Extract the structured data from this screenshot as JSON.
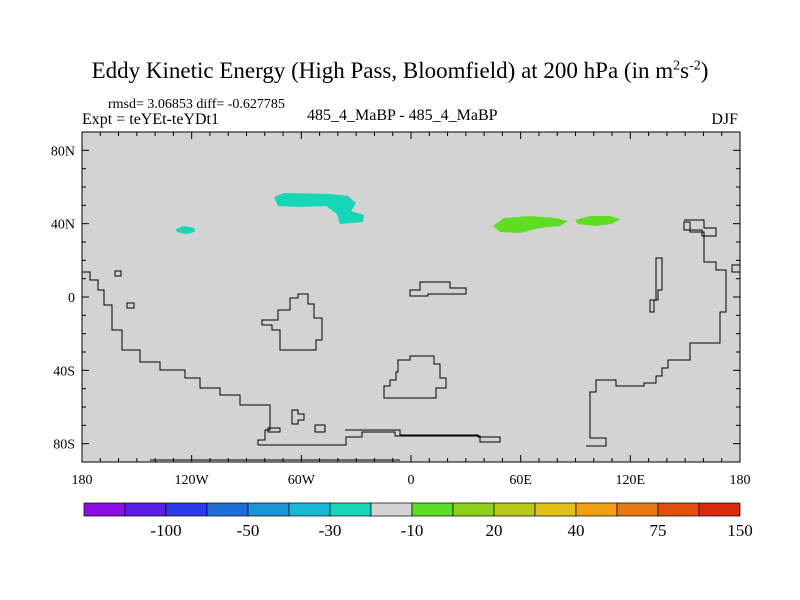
{
  "title": {
    "main": "Eddy Kinetic Energy (High Pass, Bloomfield) at 200 hPa (in m",
    "sup1": "2",
    "mid": "s",
    "sup2": "-2",
    "end": ")"
  },
  "stats": "rmsd= 3.06853 diff= -0.627785",
  "expt": "Expt = teYEt-teYDt1",
  "case": "485_4_MaBP - 485_4_MaBP",
  "season": "DJF",
  "colors": {
    "background": "#d3d3d3",
    "coast": "#000000",
    "palette": [
      "#8b10e6",
      "#5a1ee8",
      "#2d3ce8",
      "#1c6ed8",
      "#1a96d8",
      "#17b8d6",
      "#16d6b8",
      "#d3d3d3",
      "#5fdd22",
      "#8fd01a",
      "#b8c818",
      "#dfc015",
      "#f0a012",
      "#e8780f",
      "#e0500c",
      "#d82c0a"
    ]
  },
  "chart_data": {
    "type": "heatmap",
    "title": "Eddy Kinetic Energy (High Pass, Bloomfield) at 200 hPa (in m2s-2)",
    "xlim": [
      -180,
      180
    ],
    "ylim": [
      -90,
      90
    ],
    "x_ticks": [
      {
        "value": -180,
        "label": "180"
      },
      {
        "value": -120,
        "label": "120W"
      },
      {
        "value": -60,
        "label": "60W"
      },
      {
        "value": 0,
        "label": "0"
      },
      {
        "value": 60,
        "label": "60E"
      },
      {
        "value": 120,
        "label": "120E"
      },
      {
        "value": 180,
        "label": "180"
      }
    ],
    "y_ticks": [
      {
        "value": 80,
        "label": "80N"
      },
      {
        "value": 40,
        "label": "40N"
      },
      {
        "value": 0,
        "label": "0"
      },
      {
        "value": -40,
        "label": "40S"
      },
      {
        "value": -80,
        "label": "80S"
      }
    ],
    "colorbar_labels": [
      "-100",
      "-50",
      "-30",
      "-10",
      "20",
      "40",
      "75",
      "150"
    ],
    "anomaly_regions": [
      {
        "name": "Pacific teal patch",
        "color_bin": -10,
        "lon": [
          -125,
          -118
        ],
        "lat": [
          35,
          38
        ]
      },
      {
        "name": "Atlantic teal band",
        "color_bin": -10,
        "lon": [
          -75,
          -25
        ],
        "lat": [
          40,
          55
        ]
      },
      {
        "name": "Asia green patch west",
        "color_bin": 20,
        "lon": [
          45,
          85
        ],
        "lat": [
          36,
          45
        ]
      },
      {
        "name": "Asia green patch east",
        "color_bin": 20,
        "lon": [
          90,
          115
        ],
        "lat": [
          38,
          44
        ]
      }
    ]
  }
}
